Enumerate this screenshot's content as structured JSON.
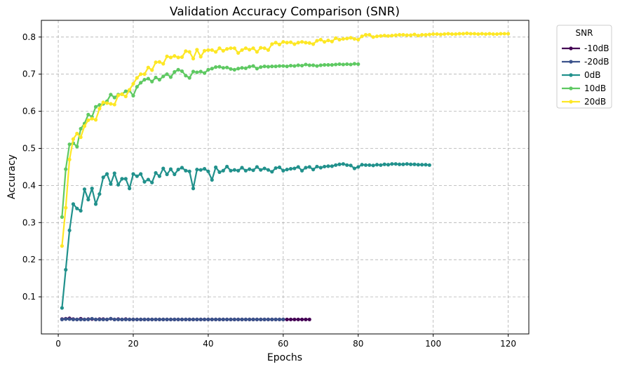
{
  "chart_data": {
    "type": "line",
    "title": "Validation Accuracy Comparison (SNR)",
    "xlabel": "Epochs",
    "ylabel": "Accuracy",
    "xlim": [
      -4.5,
      125.5
    ],
    "ylim": [
      0.0,
      0.845
    ],
    "xticks": [
      0,
      20,
      40,
      60,
      80,
      100,
      120
    ],
    "yticks": [
      0.1,
      0.2,
      0.3,
      0.4,
      0.5,
      0.6,
      0.7,
      0.8
    ],
    "grid": true,
    "legend": {
      "title": "SNR",
      "placement": "outside-top-right"
    },
    "series": [
      {
        "name": "-10dB",
        "color": "#440154",
        "x_start": 1,
        "values": [
          0.04,
          0.041,
          0.042,
          0.04,
          0.039,
          0.041,
          0.039,
          0.04,
          0.04,
          0.039,
          0.04,
          0.04,
          0.039,
          0.041,
          0.039,
          0.04,
          0.039,
          0.04,
          0.039,
          0.039,
          0.039,
          0.039,
          0.039,
          0.039,
          0.039,
          0.039,
          0.039,
          0.039,
          0.039,
          0.039,
          0.039,
          0.039,
          0.039,
          0.039,
          0.039,
          0.039,
          0.039,
          0.039,
          0.039,
          0.039,
          0.039,
          0.039,
          0.039,
          0.039,
          0.039,
          0.039,
          0.039,
          0.039,
          0.039,
          0.039,
          0.039,
          0.039,
          0.039,
          0.039,
          0.039,
          0.039,
          0.039,
          0.039,
          0.039,
          0.039,
          0.039,
          0.039,
          0.039,
          0.039,
          0.039,
          0.039,
          0.039
        ]
      },
      {
        "name": "-20dB",
        "color": "#3b528b",
        "x_start": 1,
        "values": [
          0.039,
          0.04,
          0.04,
          0.039,
          0.039,
          0.039,
          0.039,
          0.039,
          0.041,
          0.039,
          0.039,
          0.039,
          0.039,
          0.041,
          0.039,
          0.039,
          0.039,
          0.039,
          0.039,
          0.039,
          0.039,
          0.039,
          0.039,
          0.039,
          0.039,
          0.039,
          0.039,
          0.039,
          0.039,
          0.039,
          0.039,
          0.039,
          0.039,
          0.039,
          0.039,
          0.039,
          0.039,
          0.039,
          0.039,
          0.039,
          0.039,
          0.039,
          0.039,
          0.039,
          0.039,
          0.039,
          0.039,
          0.039,
          0.039,
          0.039,
          0.039,
          0.039,
          0.039,
          0.039,
          0.039,
          0.039,
          0.039,
          0.039,
          0.039,
          0.039
        ]
      },
      {
        "name": "0dB",
        "color": "#21918c",
        "x_start": 1,
        "values": [
          0.07,
          0.173,
          0.279,
          0.35,
          0.338,
          0.332,
          0.39,
          0.362,
          0.392,
          0.35,
          0.377,
          0.422,
          0.431,
          0.404,
          0.433,
          0.402,
          0.418,
          0.418,
          0.392,
          0.431,
          0.425,
          0.431,
          0.41,
          0.416,
          0.408,
          0.434,
          0.425,
          0.446,
          0.43,
          0.444,
          0.43,
          0.443,
          0.448,
          0.44,
          0.438,
          0.392,
          0.443,
          0.442,
          0.445,
          0.438,
          0.415,
          0.449,
          0.436,
          0.44,
          0.451,
          0.44,
          0.442,
          0.44,
          0.448,
          0.44,
          0.444,
          0.441,
          0.45,
          0.442,
          0.446,
          0.442,
          0.437,
          0.447,
          0.449,
          0.44,
          0.443,
          0.445,
          0.446,
          0.45,
          0.44,
          0.448,
          0.45,
          0.443,
          0.451,
          0.448,
          0.451,
          0.452,
          0.452,
          0.455,
          0.457,
          0.458,
          0.455,
          0.454,
          0.446,
          0.45,
          0.456,
          0.455,
          0.455,
          0.454,
          0.456,
          0.455,
          0.457,
          0.456,
          0.458,
          0.458,
          0.457,
          0.457,
          0.458,
          0.457,
          0.457,
          0.456,
          0.456,
          0.456,
          0.455
        ]
      },
      {
        "name": "10dB",
        "color": "#5ec962",
        "x_start": 1,
        "values": [
          0.315,
          0.444,
          0.511,
          0.514,
          0.505,
          0.553,
          0.567,
          0.591,
          0.585,
          0.612,
          0.617,
          0.62,
          0.627,
          0.645,
          0.637,
          0.645,
          0.646,
          0.654,
          0.656,
          0.642,
          0.666,
          0.677,
          0.685,
          0.688,
          0.68,
          0.691,
          0.685,
          0.694,
          0.7,
          0.692,
          0.706,
          0.712,
          0.708,
          0.696,
          0.69,
          0.707,
          0.705,
          0.707,
          0.703,
          0.712,
          0.715,
          0.719,
          0.72,
          0.717,
          0.718,
          0.714,
          0.712,
          0.715,
          0.717,
          0.716,
          0.72,
          0.722,
          0.715,
          0.719,
          0.721,
          0.72,
          0.721,
          0.721,
          0.722,
          0.722,
          0.721,
          0.723,
          0.722,
          0.724,
          0.723,
          0.726,
          0.724,
          0.724,
          0.722,
          0.724,
          0.725,
          0.725,
          0.725,
          0.726,
          0.727,
          0.726,
          0.727,
          0.726,
          0.728,
          0.727
        ]
      },
      {
        "name": "20dB",
        "color": "#fde725",
        "x_start": 1,
        "values": [
          0.237,
          0.34,
          0.47,
          0.525,
          0.54,
          0.53,
          0.56,
          0.576,
          0.58,
          0.577,
          0.607,
          0.624,
          0.622,
          0.62,
          0.618,
          0.643,
          0.646,
          0.64,
          0.658,
          0.674,
          0.69,
          0.7,
          0.7,
          0.718,
          0.711,
          0.732,
          0.733,
          0.728,
          0.748,
          0.745,
          0.749,
          0.745,
          0.746,
          0.762,
          0.76,
          0.742,
          0.766,
          0.747,
          0.763,
          0.765,
          0.765,
          0.76,
          0.77,
          0.763,
          0.768,
          0.77,
          0.77,
          0.757,
          0.765,
          0.77,
          0.766,
          0.77,
          0.76,
          0.771,
          0.77,
          0.765,
          0.781,
          0.785,
          0.78,
          0.787,
          0.785,
          0.786,
          0.781,
          0.785,
          0.787,
          0.785,
          0.784,
          0.781,
          0.79,
          0.793,
          0.787,
          0.791,
          0.788,
          0.797,
          0.793,
          0.795,
          0.796,
          0.798,
          0.795,
          0.793,
          0.802,
          0.806,
          0.806,
          0.8,
          0.802,
          0.803,
          0.804,
          0.803,
          0.804,
          0.805,
          0.806,
          0.806,
          0.805,
          0.805,
          0.807,
          0.804,
          0.806,
          0.806,
          0.807,
          0.808,
          0.808,
          0.807,
          0.808,
          0.809,
          0.808,
          0.808,
          0.809,
          0.809,
          0.81,
          0.809,
          0.809,
          0.808,
          0.809,
          0.808,
          0.809,
          0.808,
          0.808,
          0.809,
          0.809,
          0.809
        ]
      }
    ]
  }
}
